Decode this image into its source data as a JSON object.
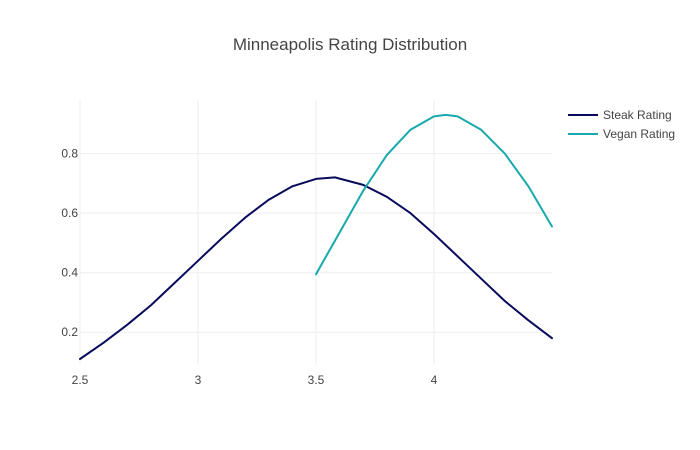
{
  "chart_data": {
    "type": "line",
    "title": "Minneapolis Rating Distribution",
    "xlabel": "",
    "ylabel": "",
    "xlim": [
      2.5,
      4.5
    ],
    "ylim": [
      0.09,
      0.98
    ],
    "x_ticks": [
      2.5,
      3,
      3.5,
      4
    ],
    "x_tick_labels": [
      "2.5",
      "3",
      "3.5",
      "4"
    ],
    "y_ticks": [
      0.2,
      0.4,
      0.6,
      0.8
    ],
    "y_tick_labels": [
      "0.2",
      "0.4",
      "0.6",
      "0.8"
    ],
    "grid": true,
    "legend_position": "top-right",
    "series": [
      {
        "name": "Steak Rating",
        "color": "#0a0a5c",
        "x": [
          2.5,
          2.6,
          2.7,
          2.8,
          2.9,
          3.0,
          3.1,
          3.2,
          3.3,
          3.4,
          3.5,
          3.58,
          3.7,
          3.8,
          3.9,
          4.0,
          4.1,
          4.2,
          4.3,
          4.4,
          4.5
        ],
        "y": [
          0.11,
          0.165,
          0.225,
          0.29,
          0.365,
          0.44,
          0.515,
          0.585,
          0.645,
          0.69,
          0.715,
          0.72,
          0.695,
          0.655,
          0.6,
          0.53,
          0.455,
          0.38,
          0.305,
          0.24,
          0.18
        ]
      },
      {
        "name": "Vegan Rating",
        "color": "#17a9ad",
        "x": [
          3.5,
          3.6,
          3.7,
          3.8,
          3.9,
          4.0,
          4.05,
          4.1,
          4.2,
          4.3,
          4.4,
          4.5
        ],
        "y": [
          0.395,
          0.535,
          0.675,
          0.795,
          0.88,
          0.925,
          0.93,
          0.925,
          0.88,
          0.8,
          0.69,
          0.555
        ]
      }
    ]
  }
}
